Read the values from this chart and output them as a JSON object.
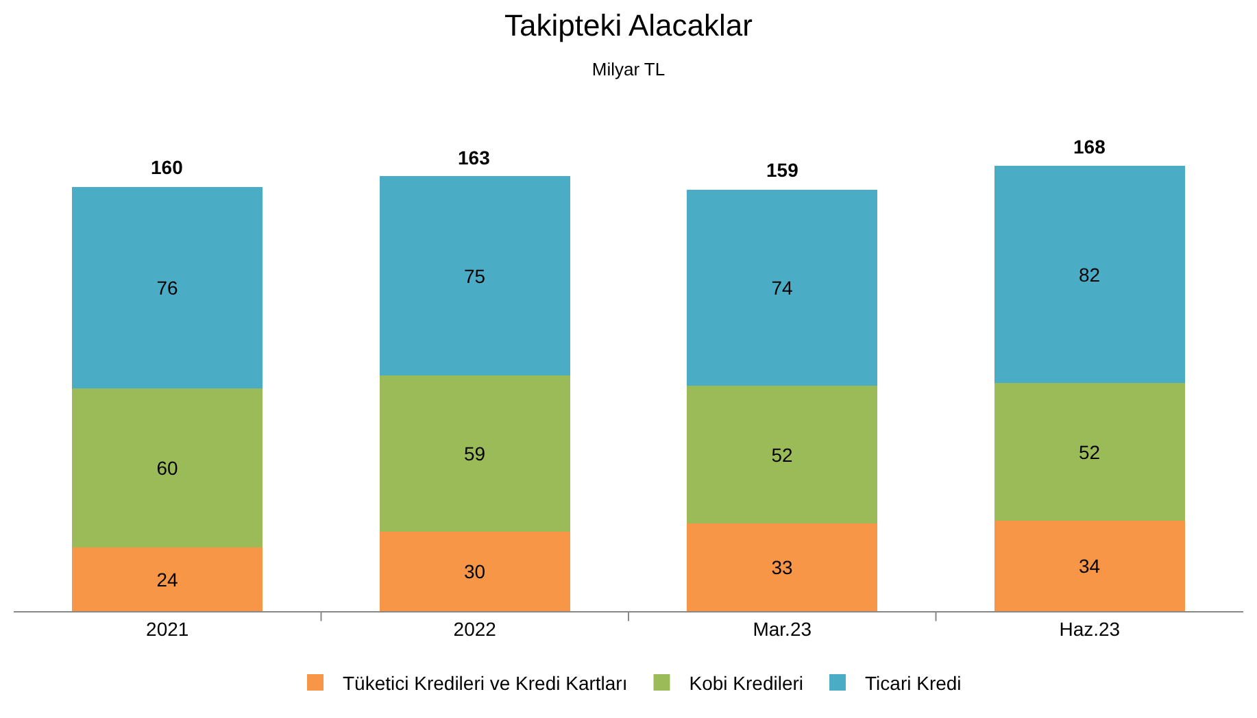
{
  "chart_data": {
    "type": "bar",
    "stacked": true,
    "title": "Takipteki Alacaklar",
    "subtitle": "Milyar TL",
    "categories": [
      "2021",
      "2022",
      "Mar.23",
      "Haz.23"
    ],
    "series": [
      {
        "name": "Tüketici Kredileri ve Kredi Kartları",
        "color": "#f79646",
        "values": [
          24,
          30,
          33,
          34
        ]
      },
      {
        "name": "Kobi Kredileri",
        "color": "#9bbb59",
        "values": [
          60,
          59,
          52,
          52
        ]
      },
      {
        "name": "Ticari Kredi",
        "color": "#4bacc6",
        "values": [
          76,
          75,
          74,
          82
        ]
      }
    ],
    "data_labels": true,
    "totals": [
      "160",
      "163",
      "159",
      "168"
    ],
    "legend": "bottom"
  }
}
